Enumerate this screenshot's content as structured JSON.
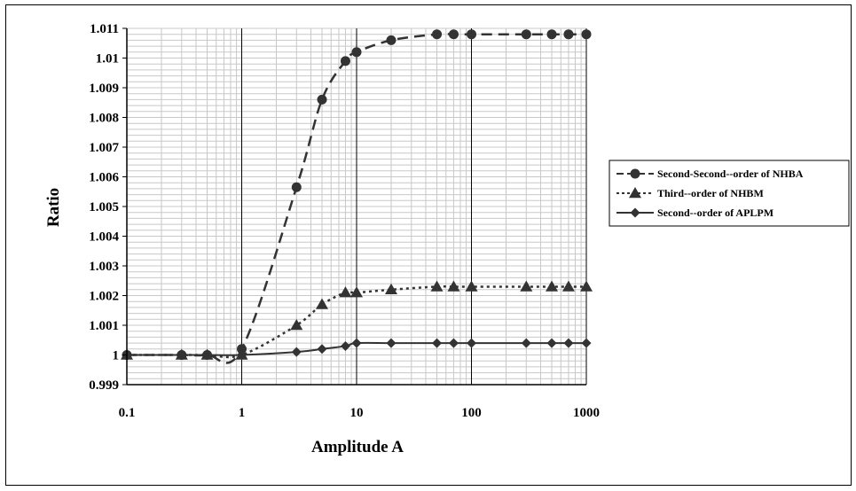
{
  "chart_data": {
    "type": "line",
    "title": "",
    "xlabel": "Amplitude A",
    "ylabel": "Ratio",
    "xscale": "log",
    "xlim": [
      0.1,
      1000
    ],
    "ylim": [
      0.999,
      1.011
    ],
    "grid": true,
    "legend_placement": "right",
    "x_ticks": [
      0.1,
      1,
      10,
      100,
      1000
    ],
    "x_tick_labels": [
      "0.1",
      "1",
      "10",
      "100",
      "1000"
    ],
    "y_ticks": [
      0.999,
      1,
      1.001,
      1.002,
      1.003,
      1.004,
      1.005,
      1.006,
      1.007,
      1.008,
      1.009,
      1.01,
      1.011
    ],
    "y_tick_labels": [
      "0.999",
      "1",
      "1.001",
      "1.002",
      "1.003",
      "1.004",
      "1.005",
      "1.006",
      "1.007",
      "1.008",
      "1.009",
      "1.01",
      "1.011"
    ],
    "series": [
      {
        "name": "Second-Second--order of NHBA",
        "marker": "circle",
        "line_style": "dashed",
        "color": "#333333",
        "x": [
          0.1,
          0.3,
          0.5,
          1,
          3,
          5,
          8,
          10,
          20,
          50,
          70,
          100,
          300,
          500,
          700,
          1000
        ],
        "y": [
          1.0,
          1.0,
          1.0,
          1.0002,
          1.00565,
          1.0086,
          1.0099,
          1.0102,
          1.0106,
          1.0108,
          1.0108,
          1.0108,
          1.0108,
          1.0108,
          1.0108,
          1.0108
        ]
      },
      {
        "name": "Third--order of NHBM",
        "marker": "triangle",
        "line_style": "dotted",
        "color": "#333333",
        "x": [
          0.1,
          0.3,
          0.5,
          1,
          3,
          5,
          8,
          10,
          20,
          50,
          70,
          100,
          300,
          500,
          700,
          1000
        ],
        "y": [
          1.0,
          1.0,
          1.0,
          1.0,
          1.001,
          1.0017,
          1.0021,
          1.0021,
          1.0022,
          1.0023,
          1.0023,
          1.0023,
          1.0023,
          1.0023,
          1.0023,
          1.0023
        ]
      },
      {
        "name": "Second--order of APLPM",
        "marker": "diamond",
        "line_style": "solid",
        "color": "#333333",
        "x": [
          0.1,
          0.3,
          0.5,
          1,
          3,
          5,
          8,
          10,
          20,
          50,
          70,
          100,
          300,
          500,
          700,
          1000
        ],
        "y": [
          1.0,
          1.0,
          1.0,
          1.0,
          1.0001,
          1.0002,
          1.0003,
          1.0004,
          1.0004,
          1.0004,
          1.0004,
          1.0004,
          1.0004,
          1.0004,
          1.0004,
          1.0004
        ]
      }
    ]
  }
}
